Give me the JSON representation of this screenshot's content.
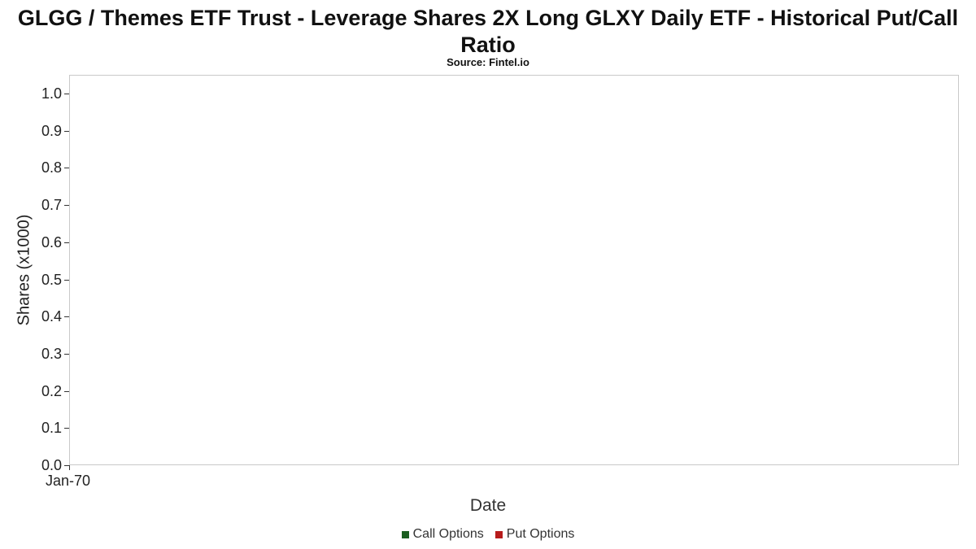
{
  "header": {
    "title": "GLGG / Themes ETF Trust - Leverage Shares 2X Long GLXY Daily ETF - Historical Put/Call Ratio",
    "subtitle": "Source: Fintel.io"
  },
  "chart_data": {
    "type": "line",
    "title": "GLGG / Themes ETF Trust - Leverage Shares 2X Long GLXY Daily ETF - Historical Put/Call Ratio",
    "subtitle": "Source: Fintel.io",
    "xlabel": "Date",
    "ylabel": "Shares (x1000)",
    "ylim": [
      0.0,
      1.0
    ],
    "yticks": [
      "1.0",
      "0.9",
      "0.8",
      "0.7",
      "0.6",
      "0.5",
      "0.4",
      "0.3",
      "0.2",
      "0.1",
      "0.0"
    ],
    "xticks": [
      "Jan-70"
    ],
    "x": [],
    "series": [
      {
        "name": "Call Options",
        "color": "#1b5e20",
        "values": []
      },
      {
        "name": "Put Options",
        "color": "#b71c1c",
        "values": []
      }
    ],
    "grid": false,
    "legend_position": "bottom",
    "notes": "empty plot area - no data points rendered"
  }
}
